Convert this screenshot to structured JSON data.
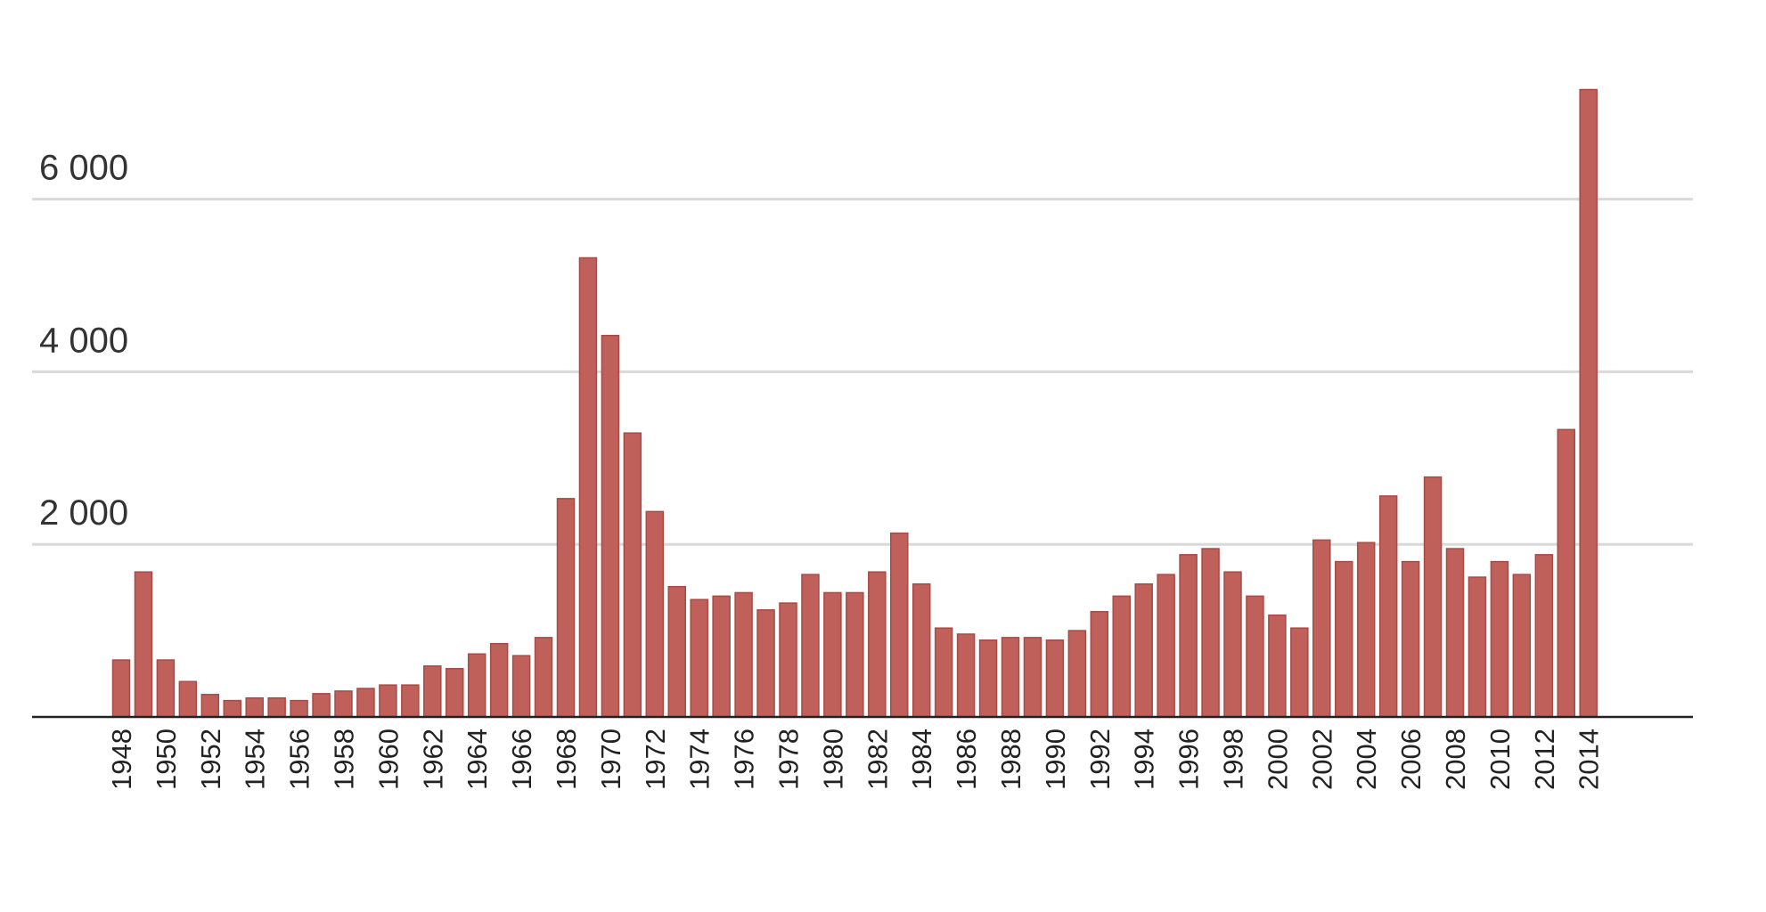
{
  "chart_data": {
    "type": "bar",
    "title": "",
    "xlabel": "",
    "ylabel": "",
    "ylim": [
      0,
      7300
    ],
    "y_ticks": [
      2000,
      4000,
      6000
    ],
    "y_tick_labels": [
      "2 000",
      "4 000",
      "6 000"
    ],
    "grid": true,
    "legend": "none",
    "bar_color": "#c0605b",
    "bar_edge_color": "#a84a46",
    "categories": [
      "1948",
      "1949",
      "1950",
      "1951",
      "1952",
      "1953",
      "1954",
      "1955",
      "1956",
      "1957",
      "1958",
      "1959",
      "1960",
      "1961",
      "1962",
      "1963",
      "1964",
      "1965",
      "1966",
      "1967",
      "1968",
      "1969",
      "1970",
      "1971",
      "1972",
      "1973",
      "1974",
      "1975",
      "1976",
      "1977",
      "1978",
      "1979",
      "1980",
      "1981",
      "1982",
      "1983",
      "1984",
      "1985",
      "1986",
      "1987",
      "1988",
      "1989",
      "1990",
      "1991",
      "1992",
      "1993",
      "1994",
      "1995",
      "1996",
      "1997",
      "1998",
      "1999",
      "2000",
      "2001",
      "2002",
      "2003",
      "2004",
      "2005",
      "2006",
      "2007",
      "2008",
      "2009",
      "2010",
      "2011",
      "2012",
      "2013",
      "2014"
    ],
    "x_tick_labels": [
      "1948",
      "1950",
      "1952",
      "1954",
      "1956",
      "1958",
      "1960",
      "1962",
      "1964",
      "1966",
      "1968",
      "1970",
      "1972",
      "1974",
      "1976",
      "1978",
      "1980",
      "1982",
      "1984",
      "1986",
      "1988",
      "1990",
      "1992",
      "1994",
      "1996",
      "1998",
      "2000",
      "2002",
      "2004",
      "2006",
      "2008",
      "2010",
      "2012",
      "2014"
    ],
    "values": [
      660,
      1680,
      660,
      410,
      260,
      190,
      220,
      220,
      190,
      270,
      300,
      330,
      370,
      370,
      590,
      560,
      730,
      850,
      710,
      920,
      2530,
      5320,
      4420,
      3290,
      2380,
      1510,
      1360,
      1400,
      1440,
      1240,
      1320,
      1650,
      1440,
      1440,
      1680,
      2130,
      1540,
      1030,
      960,
      890,
      920,
      920,
      890,
      1000,
      1220,
      1400,
      1540,
      1650,
      1880,
      1950,
      1680,
      1400,
      1180,
      1030,
      2050,
      1800,
      2020,
      2560,
      1800,
      2780,
      1950,
      1620,
      1800,
      1650,
      1880,
      3330,
      7270
    ]
  }
}
